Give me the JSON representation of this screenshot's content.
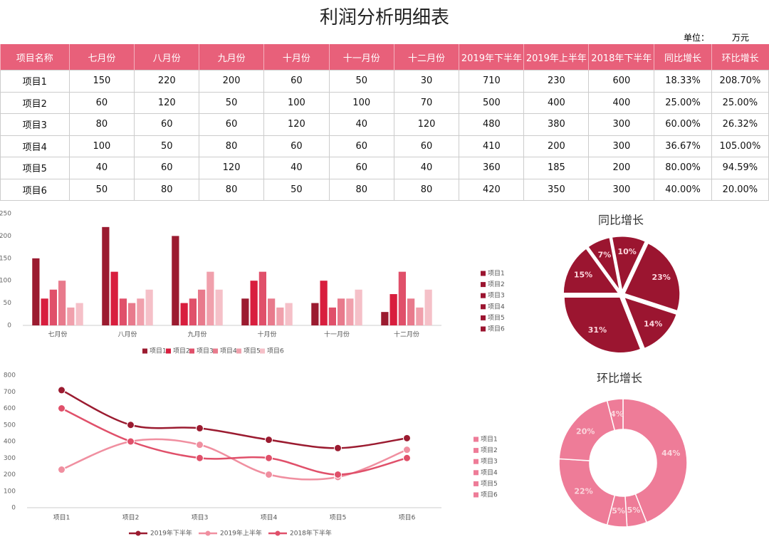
{
  "header": {
    "title": "利润分析明细表",
    "unit_label": "单位：",
    "unit": "万元"
  },
  "table": {
    "columns": [
      "项目名称",
      "七月份",
      "八月份",
      "九月份",
      "十月份",
      "十一月份",
      "十二月份",
      "2019年下半年",
      "2019年上半年",
      "2018年下半年",
      "同比增长",
      "环比增长"
    ],
    "rows": [
      [
        "项目1",
        150,
        220,
        200,
        60,
        50,
        30,
        710,
        230,
        600,
        "18.33%",
        "208.70%"
      ],
      [
        "项目2",
        60,
        120,
        50,
        100,
        100,
        70,
        500,
        400,
        400,
        "25.00%",
        "25.00%"
      ],
      [
        "项目3",
        80,
        60,
        60,
        120,
        40,
        120,
        480,
        380,
        300,
        "60.00%",
        "26.32%"
      ],
      [
        "项目4",
        100,
        50,
        80,
        60,
        60,
        60,
        410,
        200,
        300,
        "36.67%",
        "105.00%"
      ],
      [
        "项目5",
        40,
        60,
        120,
        40,
        60,
        40,
        360,
        185,
        200,
        "80.00%",
        "94.59%"
      ],
      [
        "项目6",
        50,
        80,
        80,
        50,
        80,
        80,
        420,
        350,
        300,
        "40.00%",
        "20.00%"
      ]
    ]
  },
  "chart_data": [
    {
      "type": "bar",
      "categories": [
        "七月份",
        "八月份",
        "九月份",
        "十月份",
        "十一月份",
        "十二月份"
      ],
      "series": [
        {
          "name": "项目1",
          "color": "#9b1b30",
          "values": [
            150,
            220,
            200,
            60,
            50,
            30
          ]
        },
        {
          "name": "项目2",
          "color": "#d81e3e",
          "values": [
            60,
            120,
            50,
            100,
            100,
            70
          ]
        },
        {
          "name": "项目3",
          "color": "#e0506a",
          "values": [
            80,
            60,
            60,
            120,
            40,
            120
          ]
        },
        {
          "name": "项目4",
          "color": "#e87a8c",
          "values": [
            100,
            50,
            80,
            60,
            60,
            60
          ]
        },
        {
          "name": "项目5",
          "color": "#f0a0ac",
          "values": [
            40,
            60,
            120,
            40,
            60,
            40
          ]
        },
        {
          "name": "项目6",
          "color": "#f5c0c8",
          "values": [
            50,
            80,
            80,
            50,
            80,
            80
          ]
        }
      ],
      "ylim": [
        0,
        250
      ],
      "yticks": [
        0,
        50,
        100,
        150,
        200,
        250
      ],
      "grid": false,
      "legend": "bottom"
    },
    {
      "type": "pie",
      "title": "同比增长",
      "categories": [
        "项目1",
        "项目2",
        "项目3",
        "项目4",
        "项目5",
        "项目6"
      ],
      "values": [
        7,
        10,
        23,
        14,
        31,
        15
      ],
      "value_labels": [
        "7%",
        "10%",
        "23%",
        "14%",
        "31%",
        "15%"
      ],
      "color": "#9b1530",
      "legend": "left"
    },
    {
      "type": "line",
      "categories": [
        "项目1",
        "项目2",
        "项目3",
        "项目4",
        "项目5",
        "项目6"
      ],
      "series": [
        {
          "name": "2019年下半年",
          "color": "#9b1b30",
          "values": [
            710,
            500,
            480,
            410,
            360,
            420
          ]
        },
        {
          "name": "2019年上半年",
          "color": "#f08fa0",
          "values": [
            230,
            400,
            380,
            200,
            185,
            350
          ]
        },
        {
          "name": "2018年下半年",
          "color": "#e0506a",
          "values": [
            600,
            400,
            300,
            300,
            200,
            300
          ]
        }
      ],
      "ylim": [
        0,
        800
      ],
      "yticks": [
        0,
        100,
        200,
        300,
        400,
        500,
        600,
        700,
        800
      ],
      "grid": false,
      "legend": "bottom"
    },
    {
      "type": "donut",
      "title": "环比增长",
      "categories": [
        "项目1",
        "项目2",
        "项目3",
        "项目4",
        "项目5",
        "项目6"
      ],
      "values": [
        44,
        5,
        5,
        22,
        20,
        4
      ],
      "value_labels": [
        "44%",
        "5%",
        "5%",
        "22%",
        "20%",
        "4%"
      ],
      "color": "#ee7c98",
      "legend": "left"
    }
  ]
}
